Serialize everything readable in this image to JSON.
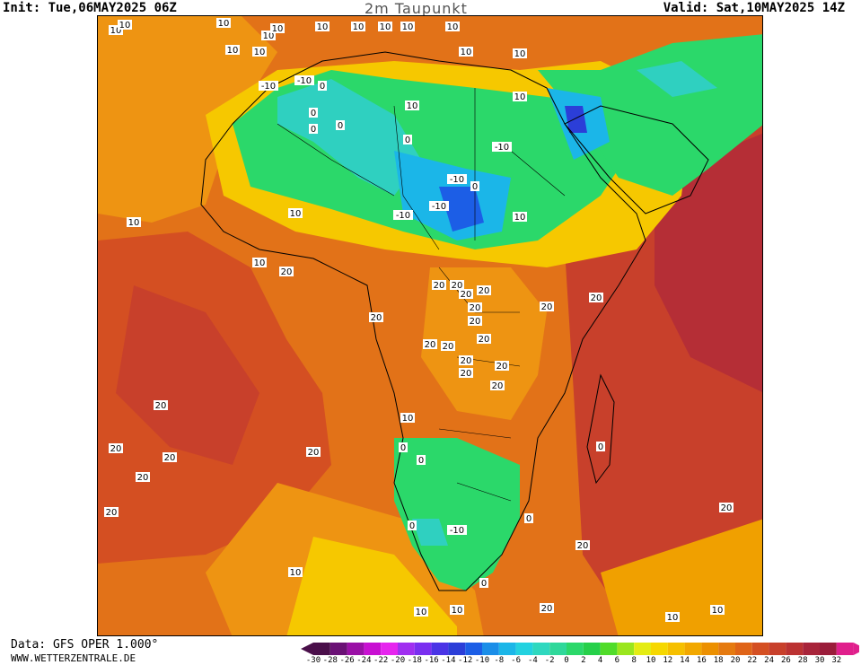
{
  "header": {
    "init": "Init: Tue,06MAY2025 06Z",
    "title": "2m Taupunkt",
    "valid": "Valid: Sat,10MAY2025 14Z"
  },
  "footer": {
    "data_source": "Data: GFS OPER 1.000°",
    "website": "WWW.WETTERZENTRALE.DE"
  },
  "colors": {
    "minus10": "#1bb6e8",
    "minus6": "#2fd0c0",
    "zero": "#2bd86a",
    "plus4": "#5fe040",
    "plus10": "#f6c800",
    "plus14": "#f0a000",
    "plus18": "#e57a10",
    "plus20": "#da5a22",
    "plus22": "#c9432a",
    "plus24": "#b52e36"
  },
  "legend": {
    "ticks": [
      "-30",
      "-28",
      "-26",
      "-24",
      "-22",
      "-20",
      "-18",
      "-16",
      "-14",
      "-12",
      "-10",
      "-8",
      "-6",
      "-4",
      "-2",
      "0",
      "2",
      "4",
      "6",
      "8",
      "10",
      "12",
      "14",
      "16",
      "18",
      "20",
      "22",
      "24",
      "26",
      "28",
      "30",
      "32"
    ],
    "colors": [
      "#4a0f4a",
      "#6a1175",
      "#9a10a6",
      "#c810d2",
      "#e625ee",
      "#a02ff0",
      "#7a2ff0",
      "#4a34e6",
      "#2b3ed8",
      "#1c5ee6",
      "#1b8ee8",
      "#1bb6e8",
      "#23d2e0",
      "#2fd8bf",
      "#2fd89a",
      "#2bd86a",
      "#26d04a",
      "#50dc2a",
      "#9ae61e",
      "#e4ec14",
      "#f6d800",
      "#f6c000",
      "#f2a800",
      "#ec9000",
      "#e57a10",
      "#df6418",
      "#d44f22",
      "#c8402b",
      "#bb3232",
      "#a8243a",
      "#9a1c3a",
      "#e01f8c"
    ]
  },
  "contour_labels": [
    "10",
    "10",
    "10",
    "10",
    "10",
    "10",
    "10",
    "10",
    "10",
    "10",
    "10",
    "10",
    "10",
    "10",
    "-10",
    "-10",
    "0",
    "0",
    "0",
    "0",
    "10",
    "10",
    "0",
    "-10",
    "-10",
    "0",
    "10",
    "-10",
    "-10",
    "10",
    "10",
    "10",
    "20",
    "20",
    "20",
    "20",
    "20",
    "20",
    "20",
    "20",
    "20",
    "20",
    "20",
    "20",
    "20",
    "20",
    "20",
    "20",
    "20",
    "20",
    "20",
    "20",
    "20",
    "20",
    "20",
    "10",
    "10",
    "10",
    "10",
    "0",
    "0",
    "0",
    "0",
    "-10",
    "0",
    "0",
    "20",
    "20",
    "10",
    "10",
    "10",
    "10",
    "20"
  ]
}
